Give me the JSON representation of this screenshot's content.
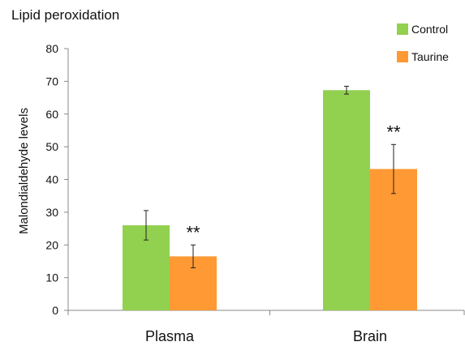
{
  "chart_data": {
    "type": "bar",
    "title": "Lipid peroxidation",
    "xlabel": "",
    "ylabel": "Malondialdehyde levels",
    "categories": [
      "Plasma",
      "Brain"
    ],
    "ylim": [
      0,
      80
    ],
    "yticks": [
      0,
      10,
      20,
      30,
      40,
      50,
      60,
      70,
      80
    ],
    "series": [
      {
        "name": "Control",
        "color": "#92D050",
        "values": [
          26,
          67.3
        ],
        "errors": [
          4.5,
          1.2
        ]
      },
      {
        "name": "Taurine",
        "color": "#FF9933",
        "values": [
          16.5,
          43.2
        ],
        "errors": [
          3.5,
          7.5
        ]
      }
    ],
    "annotations": [
      {
        "text": "**",
        "category": "Plasma",
        "series": "Taurine"
      },
      {
        "text": "**",
        "category": "Brain",
        "series": "Taurine"
      }
    ],
    "legend_position": "top-right",
    "grid": false
  }
}
